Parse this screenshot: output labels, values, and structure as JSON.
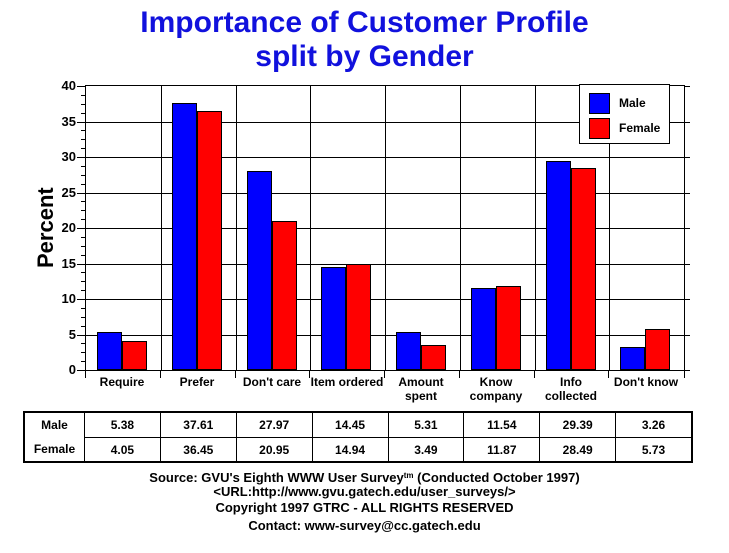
{
  "title": {
    "line1": "Importance of Customer Profile",
    "line2": "split by Gender"
  },
  "chart_data": {
    "type": "bar",
    "title": "Importance of Customer Profile split by Gender",
    "ylabel": "Percent",
    "ylim": [
      0,
      40
    ],
    "ytick_step": 5,
    "minor_ticks_per_major": 3,
    "grid": true,
    "legend_position": "top-right-inside",
    "categories": [
      "Require",
      "Prefer",
      "Don't care",
      "Item ordered",
      "Amount spent",
      "Know company",
      "Info collected",
      "Don't know"
    ],
    "category_label_lines": [
      [
        "Require"
      ],
      [
        "Prefer"
      ],
      [
        "Don't care"
      ],
      [
        "Item ordered"
      ],
      [
        "Amount",
        "spent"
      ],
      [
        "Know",
        "company"
      ],
      [
        "Info",
        "collected"
      ],
      [
        "Don't know"
      ]
    ],
    "series": [
      {
        "name": "Male",
        "color": "#0000ff",
        "values": [
          5.38,
          37.61,
          27.97,
          14.45,
          5.31,
          11.54,
          29.39,
          3.26
        ]
      },
      {
        "name": "Female",
        "color": "#ff0000",
        "values": [
          4.05,
          36.45,
          20.95,
          14.94,
          3.49,
          11.87,
          28.49,
          5.73
        ]
      }
    ],
    "colors": {
      "axis": "#000000",
      "title": "#1111dd",
      "background": "#ffffff"
    }
  },
  "footer": {
    "source_prefix": "Source: GVU's Eighth WWW User Survey",
    "source_sup": "tm",
    "source_suffix": " (Conducted October 1997)",
    "url_line": "<URL:http://www.gvu.gatech.edu/user_surveys/>",
    "copyright_line": "Copyright 1997 GTRC - ALL RIGHTS RESERVED",
    "contact_line": "Contact: www-survey@cc.gatech.edu"
  }
}
